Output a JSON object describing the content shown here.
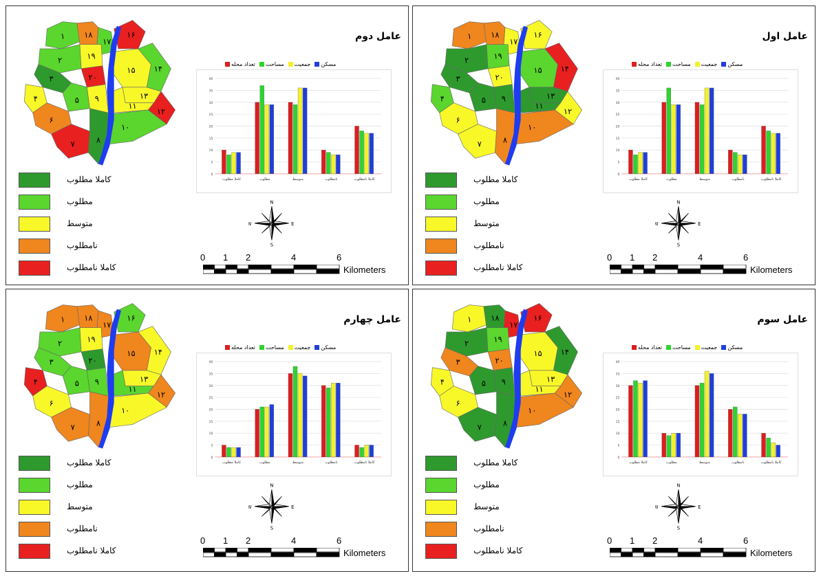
{
  "colors": {
    "kamla_motloob": "#2e9a2e",
    "motloob": "#5ad62e",
    "motavaset": "#f8f828",
    "namotloob": "#f0861e",
    "kamla_namotloob": "#e82020",
    "series_count": "#dd1e1e",
    "series_area": "#2ed42e",
    "series_pop": "#f2f22a",
    "series_housing": "#1e3fdd",
    "river": "#1e3cf0"
  },
  "legend": [
    {
      "key": "kamla_motloob",
      "label": "کاملا مطلوب"
    },
    {
      "key": "motloob",
      "label": "مطلوب"
    },
    {
      "key": "motavaset",
      "label": "متوسط"
    },
    {
      "key": "namotloob",
      "label": "نامطلوب"
    },
    {
      "key": "kamla_namotloob",
      "label": "کاملا نامطلوب"
    }
  ],
  "scalebar": {
    "ticks": [
      "0",
      "1",
      "2",
      "4",
      "6"
    ],
    "unit": "Kilometers"
  },
  "compass": {
    "n": "N",
    "s": "S",
    "e": "E",
    "w": "W"
  },
  "chart_series": [
    {
      "name": "مسکن",
      "color_key": "series_housing"
    },
    {
      "name": "جمعیت",
      "color_key": "series_pop"
    },
    {
      "name": "مساحت",
      "color_key": "series_area"
    },
    {
      "name": "تعداد محله",
      "color_key": "series_count"
    }
  ],
  "panels": [
    {
      "id": "p1",
      "title": "عامل اول",
      "zones": {
        "1": "namotloob",
        "2": "kamla_motloob",
        "3": "kamla_motloob",
        "4": "motloob",
        "5": "kamla_motloob",
        "6": "motavaset",
        "7": "motavaset",
        "8": "namotloob",
        "9": "kamla_motloob",
        "10": "namotloob",
        "11": "kamla_motloob",
        "12": "motavaset",
        "13": "kamla_motloob",
        "14": "kamla_namotloob",
        "15": "motloob",
        "16": "motavaset",
        "17": "motavaset",
        "18": "namotloob",
        "19": "motloob",
        "20": "motavaset"
      }
    },
    {
      "id": "p2",
      "title": "عامل دوم",
      "zones": {
        "1": "motloob",
        "2": "motloob",
        "3": "kamla_motloob",
        "4": "motavaset",
        "5": "motloob",
        "6": "namotloob",
        "7": "kamla_namotloob",
        "8": "kamla_motloob",
        "9": "motavaset",
        "10": "motloob",
        "11": "motavaset",
        "12": "kamla_namotloob",
        "13": "motavaset",
        "14": "motloob",
        "15": "motavaset",
        "16": "kamla_namotloob",
        "17": "motloob",
        "18": "namotloob",
        "19": "motavaset",
        "20": "kamla_namotloob"
      }
    },
    {
      "id": "p3",
      "title": "عامل سوم",
      "zones": {
        "1": "motavaset",
        "2": "kamla_motloob",
        "3": "namotloob",
        "4": "motavaset",
        "5": "kamla_motloob",
        "6": "motavaset",
        "7": "kamla_motloob",
        "8": "kamla_motloob",
        "9": "kamla_motloob",
        "10": "namotloob",
        "11": "motavaset",
        "12": "namotloob",
        "13": "motavaset",
        "14": "kamla_motloob",
        "15": "motavaset",
        "16": "kamla_namotloob",
        "17": "kamla_namotloob",
        "18": "kamla_motloob",
        "19": "motloob",
        "20": "namotloob"
      }
    },
    {
      "id": "p4",
      "title": "عامل چهارم",
      "zones": {
        "1": "namotloob",
        "2": "motloob",
        "3": "motloob",
        "4": "kamla_namotloob",
        "5": "motloob",
        "6": "motavaset",
        "7": "namotloob",
        "8": "namotloob",
        "9": "motloob",
        "10": "motavaset",
        "11": "motloob",
        "12": "namotloob",
        "13": "motavaset",
        "14": "motavaset",
        "15": "namotloob",
        "16": "motloob",
        "17": "namotloob",
        "18": "namotloob",
        "19": "motavaset",
        "20": "kamla_motloob"
      }
    }
  ],
  "chart_data": [
    {
      "type": "bar",
      "panel": "عامل اول",
      "categories": [
        "کاملا مطلوب",
        "مطلوب",
        "متوسط",
        "نامطلوب",
        "کاملا نامطلوب"
      ],
      "series": [
        {
          "name": "تعداد محله",
          "values": [
            10,
            30,
            30,
            10,
            20
          ]
        },
        {
          "name": "مساحت",
          "values": [
            8,
            36,
            29,
            9,
            18
          ]
        },
        {
          "name": "جمعیت",
          "values": [
            9,
            29,
            36,
            8,
            17
          ]
        },
        {
          "name": "مسکن",
          "values": [
            9,
            29,
            36,
            8,
            17
          ]
        }
      ],
      "yticks": [
        "0",
        "5",
        "10",
        "15",
        "20",
        "25",
        "30",
        "35",
        "40"
      ],
      "ylim": [
        0,
        40
      ]
    },
    {
      "type": "bar",
      "panel": "عامل دوم",
      "categories": [
        "کاملا مطلوب",
        "مطلوب",
        "متوسط",
        "نامطلوب",
        "کاملا نامطلوب"
      ],
      "series": [
        {
          "name": "تعداد محله",
          "values": [
            10,
            30,
            30,
            10,
            20
          ]
        },
        {
          "name": "مساحت",
          "values": [
            8,
            37,
            29,
            9,
            18
          ]
        },
        {
          "name": "جمعیت",
          "values": [
            9,
            29,
            36,
            8,
            17
          ]
        },
        {
          "name": "مسکن",
          "values": [
            9,
            29,
            36,
            8,
            17
          ]
        }
      ],
      "yticks": [
        "0",
        "5",
        "10",
        "15",
        "20",
        "25",
        "30",
        "35",
        "40"
      ],
      "ylim": [
        0,
        40
      ]
    },
    {
      "type": "bar",
      "panel": "عامل سوم",
      "categories": [
        "کاملا مطلوب",
        "مطلوب",
        "متوسط",
        "نامطلوب",
        "کاملا نامطلوب"
      ],
      "series": [
        {
          "name": "تعداد محله",
          "values": [
            30,
            10,
            30,
            20,
            10
          ]
        },
        {
          "name": "مساحت",
          "values": [
            32,
            9,
            31,
            21,
            8
          ]
        },
        {
          "name": "جمعیت",
          "values": [
            31,
            10,
            36,
            18,
            6
          ]
        },
        {
          "name": "مسکن",
          "values": [
            32,
            10,
            35,
            18,
            5
          ]
        }
      ],
      "yticks": [
        "0",
        "5",
        "10",
        "15",
        "20",
        "25",
        "30",
        "35",
        "40"
      ],
      "ylim": [
        0,
        40
      ]
    },
    {
      "type": "bar",
      "panel": "عامل چهارم",
      "categories": [
        "کاملا مطلوب",
        "مطلوب",
        "متوسط",
        "نامطلوب",
        "کاملا نامطلوب"
      ],
      "series": [
        {
          "name": "تعداد محله",
          "values": [
            5,
            20,
            35,
            30,
            5
          ]
        },
        {
          "name": "مساحت",
          "values": [
            4,
            21,
            38,
            29,
            4
          ]
        },
        {
          "name": "جمعیت",
          "values": [
            4,
            21,
            35,
            31,
            5
          ]
        },
        {
          "name": "مسکن",
          "values": [
            4,
            22,
            34,
            31,
            5
          ]
        }
      ],
      "yticks": [
        "0",
        "5",
        "10",
        "15",
        "20",
        "25",
        "30",
        "35",
        "40"
      ],
      "ylim": [
        0,
        40
      ]
    }
  ]
}
